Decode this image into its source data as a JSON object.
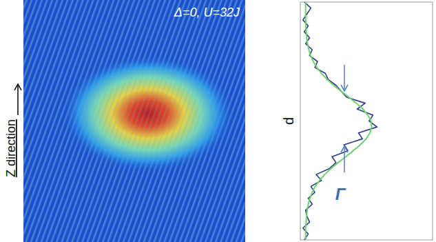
{
  "image": {
    "label": "Δ=0, U=32J",
    "axis_label": "Z direction"
  },
  "chart_data": {
    "type": "line",
    "orientation": "horizontal",
    "ylabel": "d",
    "annotation": "Γ",
    "tick_labels": false,
    "x": [
      0,
      0.025,
      0.05,
      0.075,
      0.1,
      0.125,
      0.15,
      0.175,
      0.2,
      0.225,
      0.25,
      0.275,
      0.3,
      0.325,
      0.35,
      0.375,
      0.4,
      0.425,
      0.45,
      0.475,
      0.5,
      0.525,
      0.55,
      0.575,
      0.6,
      0.625,
      0.65,
      0.675,
      0.7,
      0.725,
      0.75,
      0.775,
      0.8,
      0.825,
      0.85,
      0.875,
      0.9,
      0.925,
      0.95,
      0.975,
      1
    ],
    "xlim": [
      0,
      1
    ],
    "ylim": [
      0,
      1
    ],
    "series": [
      {
        "color": "#2b3a8c",
        "values": [
          0.03,
          0.06,
          0.02,
          0.07,
          0.05,
          0.04,
          0.09,
          0.06,
          0.11,
          0.08,
          0.16,
          0.12,
          0.22,
          0.27,
          0.24,
          0.36,
          0.33,
          0.47,
          0.44,
          0.58,
          0.52,
          0.55,
          0.43,
          0.49,
          0.35,
          0.31,
          0.27,
          0.21,
          0.19,
          0.11,
          0.13,
          0.07,
          0.09,
          0.04,
          0.07,
          0.03,
          0.06,
          0.02,
          0.05,
          0.08,
          0.03
        ]
      },
      {
        "color": "#6fd06f",
        "values": [
          0.04,
          0.04,
          0.04,
          0.044,
          0.047,
          0.052,
          0.06,
          0.072,
          0.09,
          0.113,
          0.145,
          0.184,
          0.232,
          0.286,
          0.344,
          0.4,
          0.454,
          0.498,
          0.527,
          0.54,
          0.534,
          0.511,
          0.473,
          0.423,
          0.367,
          0.309,
          0.252,
          0.203,
          0.16,
          0.125,
          0.098,
          0.078,
          0.064,
          0.055,
          0.049,
          0.045,
          0.042,
          0.041,
          0.04,
          0.04,
          0.04
        ]
      }
    ]
  }
}
